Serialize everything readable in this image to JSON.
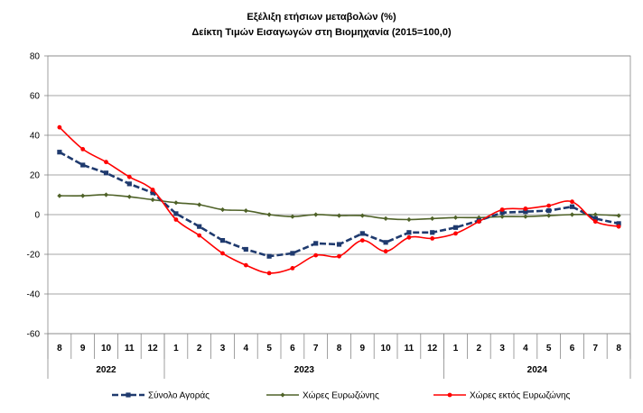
{
  "chart_data": {
    "type": "line",
    "title": "Εξέλιξη ετήσιων μεταβολών (%)",
    "subtitle": "Δείκτη Τιμών Εισαγωγών στη Βιομηχανία (2015=100,0)",
    "xlabel": "",
    "ylabel": "",
    "ylim": [
      -60,
      80
    ],
    "yticks": [
      80,
      60,
      40,
      20,
      0,
      -20,
      -40,
      -60
    ],
    "grid": true,
    "legend_position": "bottom",
    "categories": [
      "8",
      "9",
      "10",
      "11",
      "12",
      "1",
      "2",
      "3",
      "4",
      "5",
      "6",
      "7",
      "8",
      "9",
      "10",
      "11",
      "12",
      "1",
      "2",
      "3",
      "4",
      "5",
      "6",
      "7",
      "8"
    ],
    "year_groups": [
      {
        "label": "2022",
        "count": 5
      },
      {
        "label": "2023",
        "count": 12
      },
      {
        "label": "2024",
        "count": 8
      }
    ],
    "series": [
      {
        "name": "Σύνολο Αγοράς",
        "color": "#1f3a6e",
        "marker": "square",
        "dashed": true,
        "values": [
          31.5,
          25,
          21,
          15.5,
          11,
          0.5,
          -6,
          -13,
          -17.5,
          -21,
          -19.5,
          -14.5,
          -15,
          -9.5,
          -14,
          -9,
          -9,
          -6.5,
          -3,
          1,
          1.5,
          2,
          4,
          -2,
          -4.5
        ]
      },
      {
        "name": "Χώρες Ευρωζώνης",
        "color": "#4f6228",
        "marker": "diamond",
        "dashed": false,
        "values": [
          9.5,
          9.5,
          10,
          9,
          7.5,
          6,
          5,
          2.5,
          2,
          0,
          -1,
          0,
          -0.5,
          -0.5,
          -2,
          -2.5,
          -2,
          -1.5,
          -1.5,
          -1,
          -1,
          -0.5,
          0,
          0,
          -0.5
        ]
      },
      {
        "name": "Χώρες εκτός Ευρωζώνης",
        "color": "#ff0000",
        "marker": "circle",
        "dashed": false,
        "values": [
          44,
          33,
          26.5,
          19,
          12.5,
          -2.5,
          -10.5,
          -19.5,
          -25.5,
          -29.5,
          -27,
          -20.5,
          -21,
          -13,
          -18.5,
          -11.5,
          -12,
          -9.5,
          -3.5,
          2.5,
          3,
          4.5,
          6.5,
          -3.5,
          -6
        ]
      }
    ]
  }
}
